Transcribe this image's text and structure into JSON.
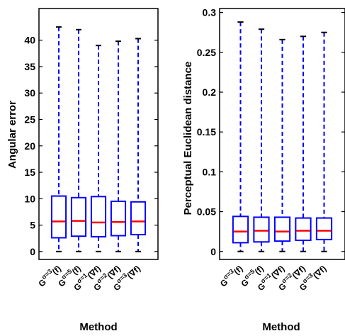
{
  "chart_data": [
    {
      "type": "box",
      "xlabel": "Method",
      "ylabel": "Angular error",
      "ylim": [
        -1.5,
        46
      ],
      "yticks": [
        0,
        5,
        10,
        15,
        20,
        25,
        30,
        35,
        40
      ],
      "categories": [
        {
          "base": "G",
          "sup": "σ=3",
          "arg": "(f)"
        },
        {
          "base": "G",
          "sup": "σ=5",
          "arg": "(f)"
        },
        {
          "base": "G",
          "sup": "σ=1",
          "arg": "(∇f)"
        },
        {
          "base": "G",
          "sup": "σ=2",
          "arg": "(∇f)"
        },
        {
          "base": "G",
          "sup": "σ=3",
          "arg": "(∇f)"
        }
      ],
      "boxes": [
        {
          "min": 0.0,
          "q1": 2.6,
          "median": 5.7,
          "q3": 10.5,
          "max": 42.5
        },
        {
          "min": 0.0,
          "q1": 2.9,
          "median": 5.8,
          "q3": 10.2,
          "max": 42.0
        },
        {
          "min": 0.0,
          "q1": 2.8,
          "median": 5.5,
          "q3": 10.4,
          "max": 39.0
        },
        {
          "min": 0.0,
          "q1": 3.0,
          "median": 5.6,
          "q3": 9.5,
          "max": 39.8
        },
        {
          "min": 0.0,
          "q1": 3.2,
          "median": 5.7,
          "q3": 9.4,
          "max": 40.3
        }
      ],
      "colors": {
        "box": "#0000ff",
        "median": "#ff0000",
        "whisker": "#0000ff",
        "cap": "#000000"
      }
    },
    {
      "type": "box",
      "xlabel": "Method",
      "ylabel": "Perceptual Euclidean distance",
      "ylim": [
        -0.01,
        0.305
      ],
      "yticks": [
        0,
        0.05,
        0.1,
        0.15,
        0.2,
        0.25,
        0.3
      ],
      "yticklabels": [
        "0",
        "0.05",
        "0.1",
        "0.15",
        "0.2",
        "0.25",
        "0.3"
      ],
      "categories": [
        {
          "base": "G",
          "sup": "σ=3",
          "arg": "(f)"
        },
        {
          "base": "G",
          "sup": "σ=5",
          "arg": "(f)"
        },
        {
          "base": "G",
          "sup": "σ=1",
          "arg": "(∇f)"
        },
        {
          "base": "G",
          "sup": "σ=2",
          "arg": "(∇f)"
        },
        {
          "base": "G",
          "sup": "σ=3",
          "arg": "(∇f)"
        }
      ],
      "boxes": [
        {
          "min": 0.0,
          "q1": 0.011,
          "median": 0.025,
          "q3": 0.044,
          "max": 0.288
        },
        {
          "min": 0.0,
          "q1": 0.012,
          "median": 0.026,
          "q3": 0.043,
          "max": 0.279
        },
        {
          "min": 0.0,
          "q1": 0.013,
          "median": 0.025,
          "q3": 0.043,
          "max": 0.266
        },
        {
          "min": 0.0,
          "q1": 0.014,
          "median": 0.026,
          "q3": 0.042,
          "max": 0.27
        },
        {
          "min": 0.0,
          "q1": 0.015,
          "median": 0.026,
          "q3": 0.042,
          "max": 0.275
        }
      ],
      "colors": {
        "box": "#0000ff",
        "median": "#ff0000",
        "whisker": "#0000ff",
        "cap": "#000000"
      }
    }
  ]
}
